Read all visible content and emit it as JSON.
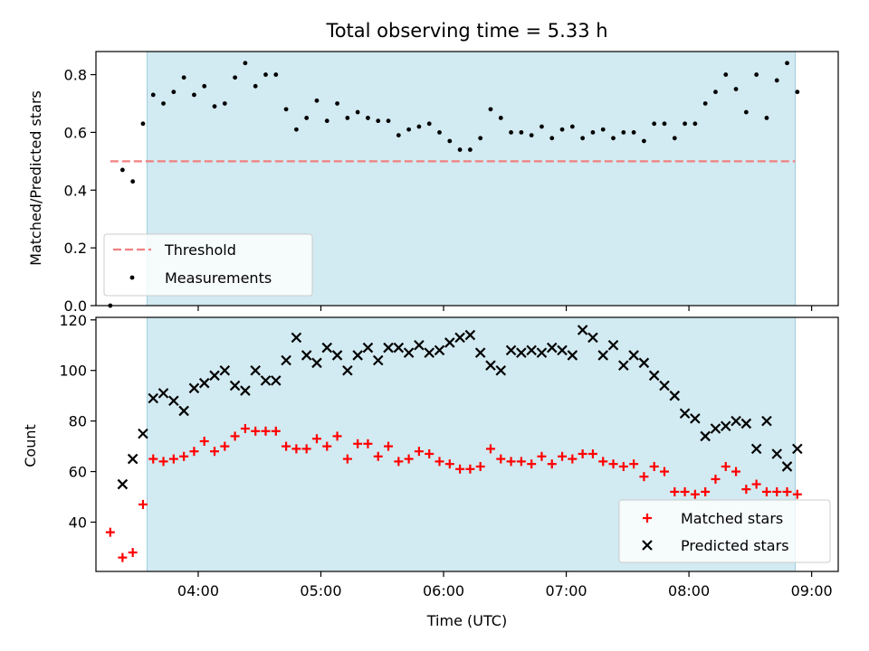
{
  "figure_title": "Total observing time = 5.33 h",
  "chart_data": [
    {
      "type": "scatter",
      "ylabel": "Matched/Predicted stars",
      "ylim": [
        0.0,
        0.88
      ],
      "yticks": [
        0.0,
        0.2,
        0.4,
        0.6,
        0.8
      ],
      "ytick_labels": [
        "0.0",
        "0.2",
        "0.4",
        "0.6",
        "0.8"
      ],
      "xlim": [
        "03:10",
        "09:13"
      ],
      "x_unit": "time of day (UTC)",
      "shaded_region": [
        "03:35",
        "08:52"
      ],
      "threshold": {
        "label": "Threshold",
        "value": 0.5,
        "x_range": [
          "03:17",
          "08:52"
        ],
        "color": "#f08080",
        "style": "dashed"
      },
      "legend": {
        "placement": "lower-left",
        "entries": [
          "Threshold",
          "Measurements"
        ]
      },
      "series": [
        {
          "name": "Measurements",
          "marker": "dot",
          "color": "#000000",
          "points": [
            [
              "03:17",
              0.0
            ],
            [
              "03:23",
              0.47
            ],
            [
              "03:28",
              0.43
            ],
            [
              "03:33",
              0.63
            ],
            [
              "03:38",
              0.73
            ],
            [
              "03:43",
              0.7
            ],
            [
              "03:48",
              0.74
            ],
            [
              "03:53",
              0.79
            ],
            [
              "03:58",
              0.73
            ],
            [
              "04:03",
              0.76
            ],
            [
              "04:08",
              0.69
            ],
            [
              "04:13",
              0.7
            ],
            [
              "04:18",
              0.79
            ],
            [
              "04:23",
              0.84
            ],
            [
              "04:28",
              0.76
            ],
            [
              "04:33",
              0.8
            ],
            [
              "04:38",
              0.8
            ],
            [
              "04:43",
              0.68
            ],
            [
              "04:48",
              0.61
            ],
            [
              "04:53",
              0.65
            ],
            [
              "04:58",
              0.71
            ],
            [
              "05:03",
              0.64
            ],
            [
              "05:08",
              0.7
            ],
            [
              "05:13",
              0.65
            ],
            [
              "05:18",
              0.67
            ],
            [
              "05:23",
              0.65
            ],
            [
              "05:28",
              0.64
            ],
            [
              "05:33",
              0.64
            ],
            [
              "05:38",
              0.59
            ],
            [
              "05:43",
              0.61
            ],
            [
              "05:48",
              0.62
            ],
            [
              "05:53",
              0.63
            ],
            [
              "05:58",
              0.6
            ],
            [
              "06:03",
              0.57
            ],
            [
              "06:08",
              0.54
            ],
            [
              "06:13",
              0.54
            ],
            [
              "06:18",
              0.58
            ],
            [
              "06:23",
              0.68
            ],
            [
              "06:28",
              0.65
            ],
            [
              "06:33",
              0.6
            ],
            [
              "06:38",
              0.6
            ],
            [
              "06:43",
              0.59
            ],
            [
              "06:48",
              0.62
            ],
            [
              "06:53",
              0.58
            ],
            [
              "06:58",
              0.61
            ],
            [
              "07:03",
              0.62
            ],
            [
              "07:08",
              0.58
            ],
            [
              "07:13",
              0.6
            ],
            [
              "07:18",
              0.61
            ],
            [
              "07:23",
              0.58
            ],
            [
              "07:28",
              0.6
            ],
            [
              "07:33",
              0.6
            ],
            [
              "07:38",
              0.57
            ],
            [
              "07:43",
              0.63
            ],
            [
              "07:48",
              0.63
            ],
            [
              "07:53",
              0.58
            ],
            [
              "07:58",
              0.63
            ],
            [
              "08:03",
              0.63
            ],
            [
              "08:08",
              0.7
            ],
            [
              "08:13",
              0.74
            ],
            [
              "08:18",
              0.8
            ],
            [
              "08:23",
              0.75
            ],
            [
              "08:28",
              0.67
            ],
            [
              "08:33",
              0.8
            ],
            [
              "08:38",
              0.65
            ],
            [
              "08:43",
              0.78
            ],
            [
              "08:48",
              0.84
            ],
            [
              "08:53",
              0.74
            ]
          ]
        }
      ]
    },
    {
      "type": "scatter",
      "xlabel": "Time (UTC)",
      "ylabel": "Count",
      "ylim": [
        20.5,
        121
      ],
      "yticks": [
        40,
        60,
        80,
        100,
        120
      ],
      "ytick_labels": [
        "40",
        "60",
        "80",
        "100",
        "120"
      ],
      "xlim": [
        "03:10",
        "09:13"
      ],
      "xticks": [
        "04:00",
        "05:00",
        "06:00",
        "07:00",
        "08:00",
        "09:00"
      ],
      "xtick_labels": [
        "04:00",
        "05:00",
        "06:00",
        "07:00",
        "08:00",
        "09:00"
      ],
      "shaded_region": [
        "03:35",
        "08:52"
      ],
      "legend": {
        "placement": "lower-right",
        "entries": [
          "Matched stars",
          "Predicted stars"
        ]
      },
      "series": [
        {
          "name": "Matched stars",
          "marker": "plus",
          "color": "#ff0000",
          "points": [
            [
              "03:17",
              36
            ],
            [
              "03:23",
              26
            ],
            [
              "03:28",
              28
            ],
            [
              "03:33",
              47
            ],
            [
              "03:38",
              65
            ],
            [
              "03:43",
              64
            ],
            [
              "03:48",
              65
            ],
            [
              "03:53",
              66
            ],
            [
              "03:58",
              68
            ],
            [
              "04:03",
              72
            ],
            [
              "04:08",
              68
            ],
            [
              "04:13",
              70
            ],
            [
              "04:18",
              74
            ],
            [
              "04:23",
              77
            ],
            [
              "04:28",
              76
            ],
            [
              "04:33",
              76
            ],
            [
              "04:38",
              76
            ],
            [
              "04:43",
              70
            ],
            [
              "04:48",
              69
            ],
            [
              "04:53",
              69
            ],
            [
              "04:58",
              73
            ],
            [
              "05:03",
              70
            ],
            [
              "05:08",
              74
            ],
            [
              "05:13",
              65
            ],
            [
              "05:18",
              71
            ],
            [
              "05:23",
              71
            ],
            [
              "05:28",
              66
            ],
            [
              "05:33",
              70
            ],
            [
              "05:38",
              64
            ],
            [
              "05:43",
              65
            ],
            [
              "05:48",
              68
            ],
            [
              "05:53",
              67
            ],
            [
              "05:58",
              64
            ],
            [
              "06:03",
              63
            ],
            [
              "06:08",
              61
            ],
            [
              "06:13",
              61
            ],
            [
              "06:18",
              62
            ],
            [
              "06:23",
              69
            ],
            [
              "06:28",
              65
            ],
            [
              "06:33",
              64
            ],
            [
              "06:38",
              64
            ],
            [
              "06:43",
              63
            ],
            [
              "06:48",
              66
            ],
            [
              "06:53",
              63
            ],
            [
              "06:58",
              66
            ],
            [
              "07:03",
              65
            ],
            [
              "07:08",
              67
            ],
            [
              "07:13",
              67
            ],
            [
              "07:18",
              64
            ],
            [
              "07:23",
              63
            ],
            [
              "07:28",
              62
            ],
            [
              "07:33",
              63
            ],
            [
              "07:38",
              58
            ],
            [
              "07:43",
              62
            ],
            [
              "07:48",
              60
            ],
            [
              "07:53",
              52
            ],
            [
              "07:58",
              52
            ],
            [
              "08:03",
              51
            ],
            [
              "08:08",
              52
            ],
            [
              "08:13",
              57
            ],
            [
              "08:18",
              62
            ],
            [
              "08:23",
              60
            ],
            [
              "08:28",
              53
            ],
            [
              "08:33",
              55
            ],
            [
              "08:38",
              52
            ],
            [
              "08:43",
              52
            ],
            [
              "08:48",
              52
            ],
            [
              "08:53",
              51
            ]
          ]
        },
        {
          "name": "Predicted stars",
          "marker": "x",
          "color": "#000000",
          "points": [
            [
              "03:23",
              55
            ],
            [
              "03:28",
              65
            ],
            [
              "03:33",
              75
            ],
            [
              "03:38",
              89
            ],
            [
              "03:43",
              91
            ],
            [
              "03:48",
              88
            ],
            [
              "03:53",
              84
            ],
            [
              "03:58",
              93
            ],
            [
              "04:03",
              95
            ],
            [
              "04:08",
              98
            ],
            [
              "04:13",
              100
            ],
            [
              "04:18",
              94
            ],
            [
              "04:23",
              92
            ],
            [
              "04:28",
              100
            ],
            [
              "04:33",
              96
            ],
            [
              "04:38",
              96
            ],
            [
              "04:43",
              104
            ],
            [
              "04:48",
              113
            ],
            [
              "04:53",
              106
            ],
            [
              "04:58",
              103
            ],
            [
              "05:03",
              109
            ],
            [
              "05:08",
              106
            ],
            [
              "05:13",
              100
            ],
            [
              "05:18",
              106
            ],
            [
              "05:23",
              109
            ],
            [
              "05:28",
              104
            ],
            [
              "05:33",
              109
            ],
            [
              "05:38",
              109
            ],
            [
              "05:43",
              107
            ],
            [
              "05:48",
              110
            ],
            [
              "05:53",
              107
            ],
            [
              "05:58",
              108
            ],
            [
              "06:03",
              111
            ],
            [
              "06:08",
              113
            ],
            [
              "06:13",
              114
            ],
            [
              "06:18",
              107
            ],
            [
              "06:23",
              102
            ],
            [
              "06:28",
              100
            ],
            [
              "06:33",
              108
            ],
            [
              "06:38",
              107
            ],
            [
              "06:43",
              108
            ],
            [
              "06:48",
              107
            ],
            [
              "06:53",
              109
            ],
            [
              "06:58",
              108
            ],
            [
              "07:03",
              106
            ],
            [
              "07:08",
              116
            ],
            [
              "07:13",
              113
            ],
            [
              "07:18",
              106
            ],
            [
              "07:23",
              110
            ],
            [
              "07:28",
              102
            ],
            [
              "07:33",
              106
            ],
            [
              "07:38",
              103
            ],
            [
              "07:43",
              98
            ],
            [
              "07:48",
              94
            ],
            [
              "07:53",
              90
            ],
            [
              "07:58",
              83
            ],
            [
              "08:03",
              81
            ],
            [
              "08:08",
              74
            ],
            [
              "08:13",
              77
            ],
            [
              "08:18",
              78
            ],
            [
              "08:23",
              80
            ],
            [
              "08:28",
              79
            ],
            [
              "08:33",
              69
            ],
            [
              "08:38",
              80
            ],
            [
              "08:43",
              67
            ],
            [
              "08:48",
              62
            ],
            [
              "08:53",
              69
            ]
          ]
        }
      ]
    }
  ]
}
